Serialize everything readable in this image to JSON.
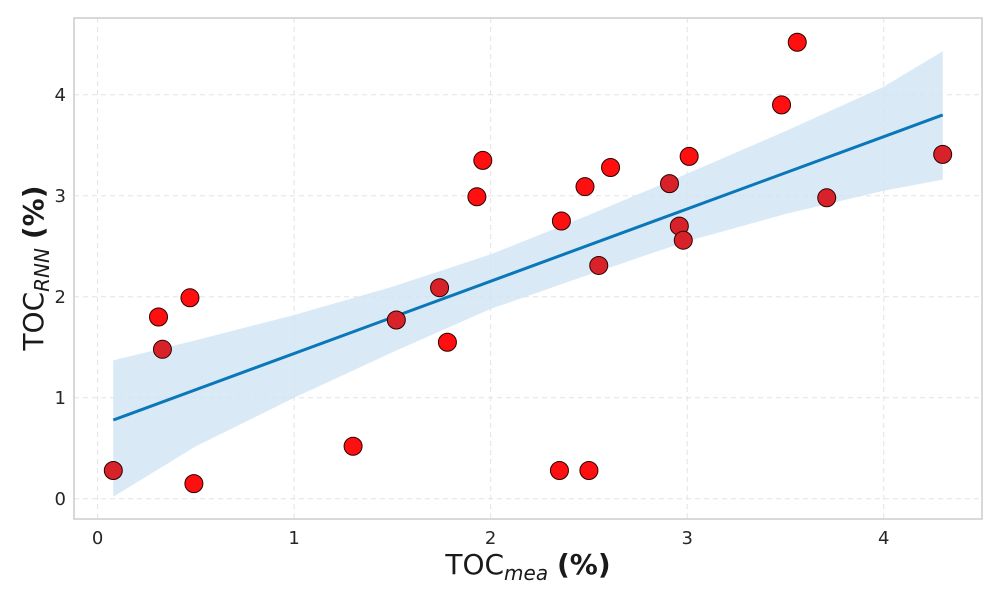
{
  "chart_data": {
    "type": "scatter",
    "title": "",
    "xlabel": {
      "main": "TOC",
      "sub": "mea",
      "unit": "(%)"
    },
    "ylabel": {
      "main": "TOC",
      "sub": "RNN",
      "unit": "(%)"
    },
    "xlim": [
      -0.12,
      4.5
    ],
    "ylim": [
      -0.2,
      4.76
    ],
    "xticks": [
      "0",
      "1",
      "2",
      "3",
      "4"
    ],
    "yticks": [
      "0",
      "1",
      "2",
      "3",
      "4"
    ],
    "grid": true,
    "point_color": "#ff0f0f",
    "band_color": "#cfe5f4",
    "line_color": "#0a77b8",
    "points": [
      {
        "x": 0.08,
        "y": 0.28
      },
      {
        "x": 0.31,
        "y": 1.8
      },
      {
        "x": 0.33,
        "y": 1.48
      },
      {
        "x": 0.47,
        "y": 1.99
      },
      {
        "x": 0.49,
        "y": 0.15
      },
      {
        "x": 1.3,
        "y": 0.52
      },
      {
        "x": 1.52,
        "y": 1.77
      },
      {
        "x": 1.74,
        "y": 2.09
      },
      {
        "x": 1.78,
        "y": 1.55
      },
      {
        "x": 1.93,
        "y": 2.99
      },
      {
        "x": 1.96,
        "y": 3.35
      },
      {
        "x": 2.35,
        "y": 0.28
      },
      {
        "x": 2.36,
        "y": 2.75
      },
      {
        "x": 2.48,
        "y": 3.09
      },
      {
        "x": 2.5,
        "y": 0.28
      },
      {
        "x": 2.55,
        "y": 2.31
      },
      {
        "x": 2.61,
        "y": 3.28
      },
      {
        "x": 2.91,
        "y": 3.12
      },
      {
        "x": 2.96,
        "y": 2.7
      },
      {
        "x": 2.98,
        "y": 2.56
      },
      {
        "x": 3.01,
        "y": 3.39
      },
      {
        "x": 3.48,
        "y": 3.9
      },
      {
        "x": 3.56,
        "y": 4.52
      },
      {
        "x": 3.71,
        "y": 2.98
      },
      {
        "x": 4.3,
        "y": 3.41
      }
    ],
    "fit_line": {
      "x": [
        0.08,
        4.3
      ],
      "y": [
        0.78,
        3.8
      ]
    },
    "ci_band": {
      "x": [
        0.08,
        0.5,
        1.0,
        1.5,
        2.0,
        2.5,
        3.0,
        3.5,
        4.0,
        4.3
      ],
      "lower": [
        0.02,
        0.52,
        1.0,
        1.45,
        1.88,
        2.22,
        2.55,
        2.82,
        3.05,
        3.16
      ],
      "upper": [
        1.37,
        1.57,
        1.82,
        2.1,
        2.42,
        2.81,
        3.22,
        3.64,
        4.08,
        4.43
      ]
    }
  }
}
